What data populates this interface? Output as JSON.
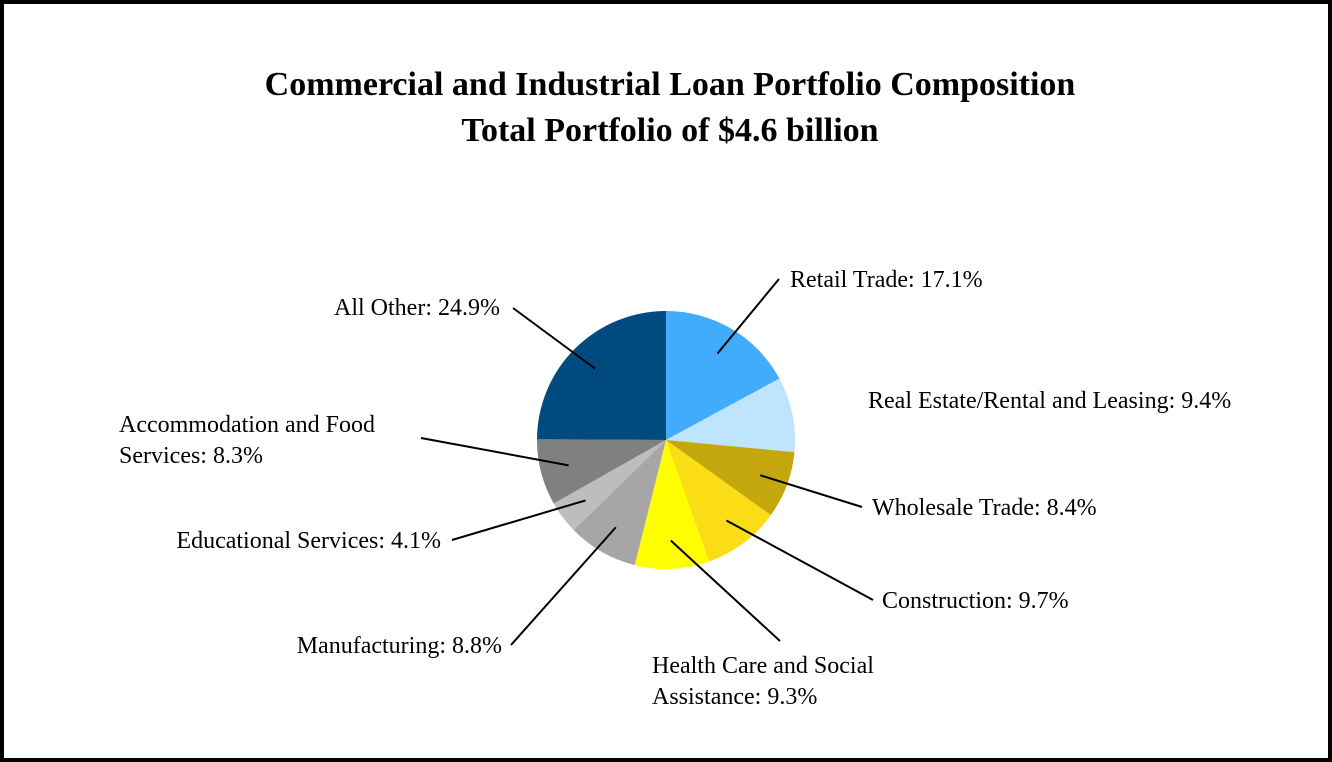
{
  "chart_data": {
    "type": "pie",
    "title": "Commercial and Industrial Loan Portfolio Composition",
    "subtitle": "Total Portfolio of $4.6 billion",
    "slices": [
      {
        "name": "Retail Trade",
        "value": 17.1,
        "label_lines": [
          "Retail Trade: 17.1%"
        ],
        "color": "#41acfc"
      },
      {
        "name": "Real Estate/Rental and Leasing",
        "value": 9.4,
        "label_lines": [
          "Real Estate/Rental and Leasing: 9.4%"
        ],
        "color": "#bfe4fd"
      },
      {
        "name": "Wholesale Trade",
        "value": 8.4,
        "label_lines": [
          "Wholesale Trade: 8.4%"
        ],
        "color": "#c4a70c"
      },
      {
        "name": "Construction",
        "value": 9.7,
        "label_lines": [
          "Construction: 9.7%"
        ],
        "color": "#fbdd16"
      },
      {
        "name": "Health Care and Social Assistance",
        "value": 9.3,
        "label_lines": [
          "Health Care and Social",
          "Assistance: 9.3%"
        ],
        "color": "#fefe00"
      },
      {
        "name": "Manufacturing",
        "value": 8.8,
        "label_lines": [
          "Manufacturing: 8.8%"
        ],
        "color": "#a6a6a6"
      },
      {
        "name": "Educational Services",
        "value": 4.1,
        "label_lines": [
          "Educational Services: 4.1%"
        ],
        "color": "#bdbdbd"
      },
      {
        "name": "Accommodation and Food Services",
        "value": 8.3,
        "label_lines": [
          "Accommodation and Food",
          "Services: 8.3%"
        ],
        "color": "#808080"
      },
      {
        "name": "All Other",
        "value": 24.9,
        "label_lines": [
          "All Other: 24.9%"
        ],
        "color": "#004a80"
      }
    ]
  }
}
